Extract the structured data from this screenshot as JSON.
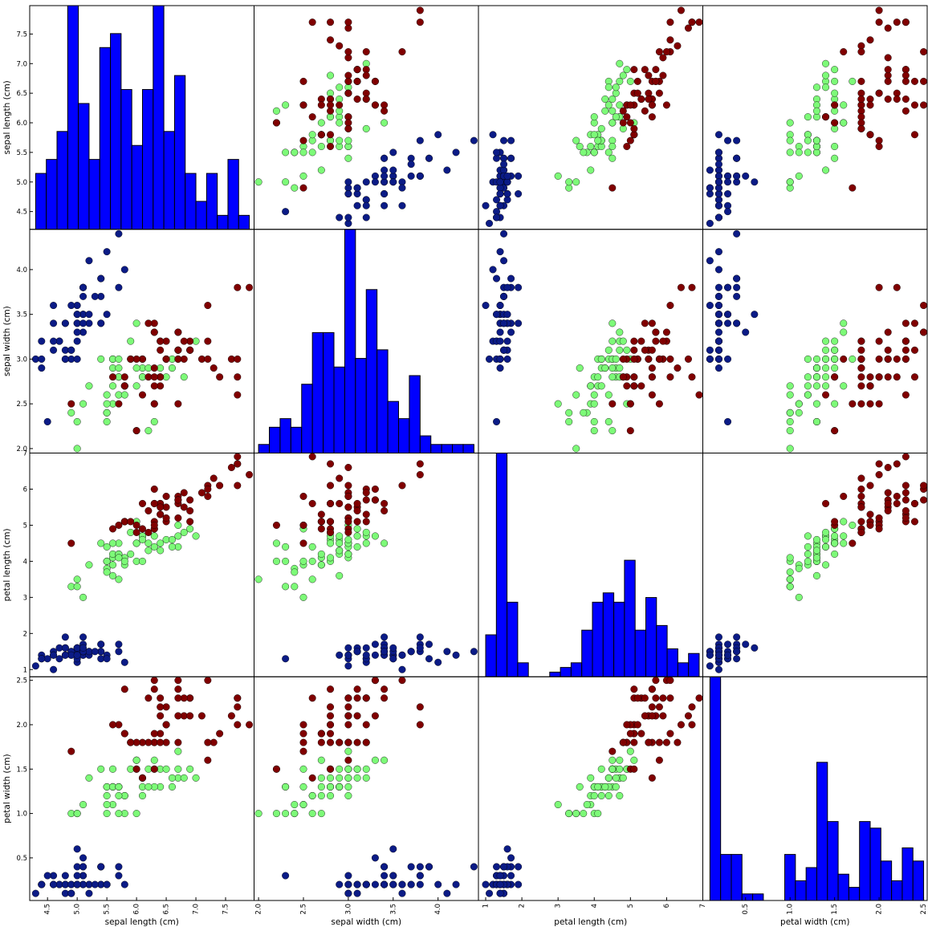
{
  "chart_data": {
    "type": "scatter_matrix",
    "variables": [
      "sepal length (cm)",
      "sepal width (cm)",
      "petal length (cm)",
      "petal width (cm)"
    ],
    "ranges": [
      [
        4.2,
        7.98
      ],
      [
        1.95,
        4.45
      ],
      [
        0.8,
        7.0
      ],
      [
        0.02,
        2.54
      ]
    ],
    "ticks": [
      [
        "4.5",
        "5.0",
        "5.5",
        "6.0",
        "6.5",
        "7.0",
        "7.5"
      ],
      [
        "2.0",
        "2.5",
        "3.0",
        "3.5",
        "4.0"
      ],
      [
        "1",
        "2",
        "3",
        "4",
        "5",
        "6",
        "7"
      ],
      [
        "0.5",
        "1.0",
        "1.5",
        "2.0",
        "2.5"
      ]
    ],
    "class_colors": [
      "#0b1b86",
      "#7dfa78",
      "#800000"
    ],
    "hist_color": "#0000ff",
    "histograms": [
      {
        "variable": "sepal length (cm)",
        "bins": 20,
        "range": [
          4.3,
          7.9
        ],
        "counts": [
          4,
          5,
          7,
          16,
          9,
          5,
          13,
          14,
          10,
          6,
          10,
          16,
          7,
          11,
          4,
          2,
          4,
          1,
          5,
          1
        ],
        "ylim": [
          0,
          16
        ]
      },
      {
        "variable": "sepal width (cm)",
        "bins": 20,
        "range": [
          2.0,
          4.4
        ],
        "counts": [
          1,
          3,
          4,
          3,
          8,
          14,
          14,
          10,
          26,
          11,
          19,
          12,
          6,
          4,
          9,
          2,
          1,
          1,
          1,
          1
        ],
        "ylim": [
          0,
          26
        ]
      },
      {
        "variable": "petal length (cm)",
        "bins": 20,
        "range": [
          1.0,
          6.9
        ],
        "counts": [
          9,
          48,
          16,
          3,
          0,
          0,
          1,
          2,
          3,
          10,
          16,
          18,
          16,
          25,
          10,
          17,
          11,
          6,
          3,
          5
        ],
        "ylim": [
          0,
          48
        ]
      },
      {
        "variable": "petal width (cm)",
        "bins": 20,
        "range": [
          0.1,
          2.5
        ],
        "counts": [
          34,
          7,
          7,
          1,
          1,
          0,
          0,
          7,
          3,
          5,
          21,
          12,
          4,
          2,
          12,
          11,
          6,
          3,
          8,
          6
        ],
        "ylim": [
          0,
          34
        ]
      }
    ],
    "samples": [
      [
        5.1,
        3.5,
        1.4,
        0.2,
        0
      ],
      [
        4.9,
        3.0,
        1.4,
        0.2,
        0
      ],
      [
        4.7,
        3.2,
        1.3,
        0.2,
        0
      ],
      [
        4.6,
        3.1,
        1.5,
        0.2,
        0
      ],
      [
        5.0,
        3.6,
        1.4,
        0.2,
        0
      ],
      [
        5.4,
        3.9,
        1.7,
        0.4,
        0
      ],
      [
        4.6,
        3.4,
        1.4,
        0.3,
        0
      ],
      [
        5.0,
        3.4,
        1.5,
        0.2,
        0
      ],
      [
        4.4,
        2.9,
        1.4,
        0.2,
        0
      ],
      [
        4.9,
        3.1,
        1.5,
        0.1,
        0
      ],
      [
        5.4,
        3.7,
        1.5,
        0.2,
        0
      ],
      [
        4.8,
        3.4,
        1.6,
        0.2,
        0
      ],
      [
        4.8,
        3.0,
        1.4,
        0.1,
        0
      ],
      [
        4.3,
        3.0,
        1.1,
        0.1,
        0
      ],
      [
        5.8,
        4.0,
        1.2,
        0.2,
        0
      ],
      [
        5.7,
        4.4,
        1.5,
        0.4,
        0
      ],
      [
        5.4,
        3.9,
        1.3,
        0.4,
        0
      ],
      [
        5.1,
        3.5,
        1.4,
        0.3,
        0
      ],
      [
        5.7,
        3.8,
        1.7,
        0.3,
        0
      ],
      [
        5.1,
        3.8,
        1.5,
        0.3,
        0
      ],
      [
        5.4,
        3.4,
        1.7,
        0.2,
        0
      ],
      [
        5.1,
        3.7,
        1.5,
        0.4,
        0
      ],
      [
        4.6,
        3.6,
        1.0,
        0.2,
        0
      ],
      [
        5.1,
        3.3,
        1.7,
        0.5,
        0
      ],
      [
        4.8,
        3.4,
        1.9,
        0.2,
        0
      ],
      [
        5.0,
        3.0,
        1.6,
        0.2,
        0
      ],
      [
        5.0,
        3.4,
        1.6,
        0.4,
        0
      ],
      [
        5.2,
        3.5,
        1.5,
        0.2,
        0
      ],
      [
        5.2,
        3.4,
        1.4,
        0.2,
        0
      ],
      [
        4.7,
        3.2,
        1.6,
        0.2,
        0
      ],
      [
        4.8,
        3.1,
        1.6,
        0.2,
        0
      ],
      [
        5.4,
        3.4,
        1.5,
        0.4,
        0
      ],
      [
        5.2,
        4.1,
        1.5,
        0.1,
        0
      ],
      [
        5.5,
        4.2,
        1.4,
        0.2,
        0
      ],
      [
        4.9,
        3.1,
        1.5,
        0.2,
        0
      ],
      [
        5.0,
        3.2,
        1.2,
        0.2,
        0
      ],
      [
        5.5,
        3.5,
        1.3,
        0.2,
        0
      ],
      [
        4.9,
        3.6,
        1.4,
        0.1,
        0
      ],
      [
        4.4,
        3.0,
        1.3,
        0.2,
        0
      ],
      [
        5.1,
        3.4,
        1.5,
        0.2,
        0
      ],
      [
        5.0,
        3.5,
        1.3,
        0.3,
        0
      ],
      [
        4.5,
        2.3,
        1.3,
        0.3,
        0
      ],
      [
        4.4,
        3.2,
        1.3,
        0.2,
        0
      ],
      [
        5.0,
        3.5,
        1.6,
        0.6,
        0
      ],
      [
        5.1,
        3.8,
        1.9,
        0.4,
        0
      ],
      [
        4.8,
        3.0,
        1.4,
        0.3,
        0
      ],
      [
        5.1,
        3.8,
        1.6,
        0.2,
        0
      ],
      [
        4.6,
        3.2,
        1.4,
        0.2,
        0
      ],
      [
        5.3,
        3.7,
        1.5,
        0.2,
        0
      ],
      [
        5.0,
        3.3,
        1.4,
        0.2,
        0
      ],
      [
        7.0,
        3.2,
        4.7,
        1.4,
        1
      ],
      [
        6.4,
        3.2,
        4.5,
        1.5,
        1
      ],
      [
        6.9,
        3.1,
        4.9,
        1.5,
        1
      ],
      [
        5.5,
        2.3,
        4.0,
        1.3,
        1
      ],
      [
        6.5,
        2.8,
        4.6,
        1.5,
        1
      ],
      [
        5.7,
        2.8,
        4.5,
        1.3,
        1
      ],
      [
        6.3,
        3.3,
        4.7,
        1.6,
        1
      ],
      [
        4.9,
        2.4,
        3.3,
        1.0,
        1
      ],
      [
        6.6,
        2.9,
        4.6,
        1.3,
        1
      ],
      [
        5.2,
        2.7,
        3.9,
        1.4,
        1
      ],
      [
        5.0,
        2.0,
        3.5,
        1.0,
        1
      ],
      [
        5.9,
        3.0,
        4.2,
        1.5,
        1
      ],
      [
        6.0,
        2.2,
        4.0,
        1.0,
        1
      ],
      [
        6.1,
        2.9,
        4.7,
        1.4,
        1
      ],
      [
        5.6,
        2.9,
        3.6,
        1.3,
        1
      ],
      [
        6.7,
        3.1,
        4.4,
        1.4,
        1
      ],
      [
        5.6,
        3.0,
        4.5,
        1.5,
        1
      ],
      [
        5.8,
        2.7,
        4.1,
        1.0,
        1
      ],
      [
        6.2,
        2.2,
        4.5,
        1.5,
        1
      ],
      [
        5.6,
        2.5,
        3.9,
        1.1,
        1
      ],
      [
        5.9,
        3.2,
        4.8,
        1.8,
        1
      ],
      [
        6.1,
        2.8,
        4.0,
        1.3,
        1
      ],
      [
        6.3,
        2.5,
        4.9,
        1.5,
        1
      ],
      [
        6.1,
        2.8,
        4.7,
        1.2,
        1
      ],
      [
        6.4,
        2.9,
        4.3,
        1.3,
        1
      ],
      [
        6.6,
        3.0,
        4.4,
        1.4,
        1
      ],
      [
        6.8,
        2.8,
        4.8,
        1.4,
        1
      ],
      [
        6.7,
        3.0,
        5.0,
        1.7,
        1
      ],
      [
        6.0,
        2.9,
        4.5,
        1.5,
        1
      ],
      [
        5.7,
        2.6,
        3.5,
        1.0,
        1
      ],
      [
        5.5,
        2.4,
        3.8,
        1.1,
        1
      ],
      [
        5.5,
        2.4,
        3.7,
        1.0,
        1
      ],
      [
        5.8,
        2.7,
        3.9,
        1.2,
        1
      ],
      [
        6.0,
        2.7,
        5.1,
        1.6,
        1
      ],
      [
        5.4,
        3.0,
        4.5,
        1.5,
        1
      ],
      [
        6.0,
        3.4,
        4.5,
        1.6,
        1
      ],
      [
        6.7,
        3.1,
        4.7,
        1.5,
        1
      ],
      [
        6.3,
        2.3,
        4.4,
        1.3,
        1
      ],
      [
        5.6,
        3.0,
        4.1,
        1.3,
        1
      ],
      [
        5.5,
        2.5,
        4.0,
        1.3,
        1
      ],
      [
        5.5,
        2.6,
        4.4,
        1.2,
        1
      ],
      [
        6.1,
        3.0,
        4.6,
        1.4,
        1
      ],
      [
        5.8,
        2.6,
        4.0,
        1.2,
        1
      ],
      [
        5.0,
        2.3,
        3.3,
        1.0,
        1
      ],
      [
        5.6,
        2.7,
        4.2,
        1.3,
        1
      ],
      [
        5.7,
        3.0,
        4.2,
        1.2,
        1
      ],
      [
        5.7,
        2.9,
        4.2,
        1.3,
        1
      ],
      [
        6.2,
        2.9,
        4.3,
        1.3,
        1
      ],
      [
        5.1,
        2.5,
        3.0,
        1.1,
        1
      ],
      [
        5.7,
        2.8,
        4.1,
        1.3,
        1
      ],
      [
        6.3,
        3.3,
        6.0,
        2.5,
        2
      ],
      [
        5.8,
        2.7,
        5.1,
        1.9,
        2
      ],
      [
        7.1,
        3.0,
        5.9,
        2.1,
        2
      ],
      [
        6.3,
        2.9,
        5.6,
        1.8,
        2
      ],
      [
        6.5,
        3.0,
        5.8,
        2.2,
        2
      ],
      [
        7.6,
        3.0,
        6.6,
        2.1,
        2
      ],
      [
        4.9,
        2.5,
        4.5,
        1.7,
        2
      ],
      [
        7.3,
        2.9,
        6.3,
        1.8,
        2
      ],
      [
        6.7,
        2.5,
        5.8,
        1.8,
        2
      ],
      [
        7.2,
        3.6,
        6.1,
        2.5,
        2
      ],
      [
        6.5,
        3.2,
        5.1,
        2.0,
        2
      ],
      [
        6.4,
        2.7,
        5.3,
        1.9,
        2
      ],
      [
        6.8,
        3.0,
        5.5,
        2.1,
        2
      ],
      [
        5.7,
        2.5,
        5.0,
        2.0,
        2
      ],
      [
        5.8,
        2.8,
        5.1,
        2.4,
        2
      ],
      [
        6.4,
        3.2,
        5.3,
        2.3,
        2
      ],
      [
        6.5,
        3.0,
        5.5,
        1.8,
        2
      ],
      [
        7.7,
        3.8,
        6.7,
        2.2,
        2
      ],
      [
        7.7,
        2.6,
        6.9,
        2.3,
        2
      ],
      [
        6.0,
        2.2,
        5.0,
        1.5,
        2
      ],
      [
        6.9,
        3.2,
        5.7,
        2.3,
        2
      ],
      [
        5.6,
        2.8,
        4.9,
        2.0,
        2
      ],
      [
        7.7,
        2.8,
        6.7,
        2.0,
        2
      ],
      [
        6.3,
        2.7,
        4.9,
        1.8,
        2
      ],
      [
        6.7,
        3.3,
        5.7,
        2.1,
        2
      ],
      [
        7.2,
        3.2,
        6.0,
        1.8,
        2
      ],
      [
        6.2,
        2.8,
        4.8,
        1.8,
        2
      ],
      [
        6.1,
        3.0,
        4.9,
        1.8,
        2
      ],
      [
        6.4,
        2.8,
        5.6,
        2.1,
        2
      ],
      [
        7.2,
        3.0,
        5.8,
        1.6,
        2
      ],
      [
        7.4,
        2.8,
        6.1,
        1.9,
        2
      ],
      [
        7.9,
        3.8,
        6.4,
        2.0,
        2
      ],
      [
        6.4,
        2.8,
        5.6,
        2.2,
        2
      ],
      [
        6.3,
        2.8,
        5.1,
        1.5,
        2
      ],
      [
        6.1,
        2.6,
        5.6,
        1.4,
        2
      ],
      [
        7.7,
        3.0,
        6.1,
        2.3,
        2
      ],
      [
        6.3,
        3.4,
        5.6,
        2.4,
        2
      ],
      [
        6.4,
        3.1,
        5.5,
        1.8,
        2
      ],
      [
        6.0,
        3.0,
        4.8,
        1.8,
        2
      ],
      [
        6.9,
        3.1,
        5.4,
        2.1,
        2
      ],
      [
        6.7,
        3.1,
        5.6,
        2.4,
        2
      ],
      [
        6.9,
        3.1,
        5.1,
        2.3,
        2
      ],
      [
        5.8,
        2.7,
        5.1,
        1.9,
        2
      ],
      [
        6.8,
        3.2,
        5.9,
        2.3,
        2
      ],
      [
        6.7,
        3.3,
        5.7,
        2.5,
        2
      ],
      [
        6.7,
        3.0,
        5.2,
        2.3,
        2
      ],
      [
        6.3,
        2.5,
        5.0,
        1.9,
        2
      ],
      [
        6.5,
        3.0,
        5.2,
        2.0,
        2
      ],
      [
        6.2,
        3.4,
        5.4,
        2.3,
        2
      ],
      [
        5.9,
        3.0,
        5.1,
        1.8,
        2
      ]
    ]
  }
}
